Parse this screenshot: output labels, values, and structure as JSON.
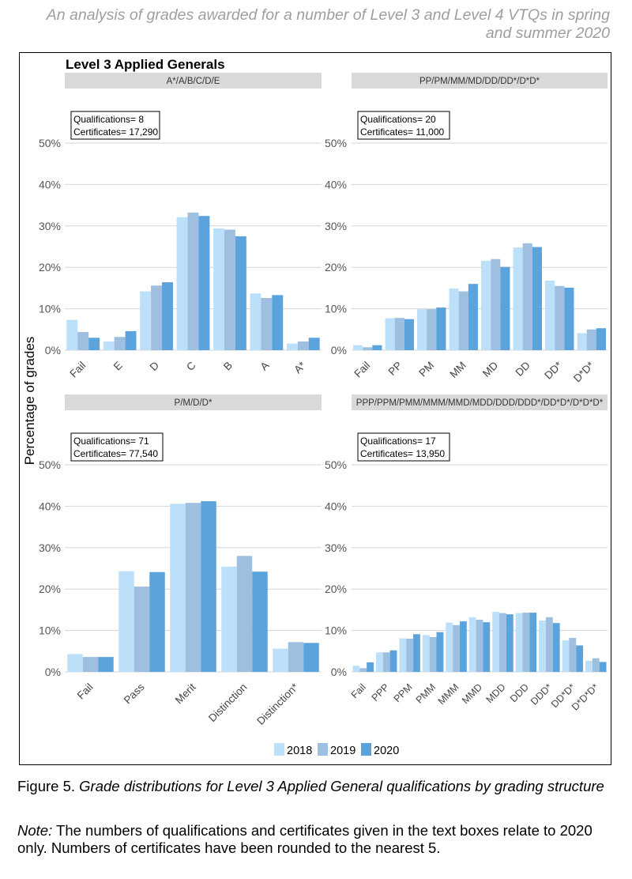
{
  "header": {
    "text": "An analysis of grades awarded for a number of Level 3 and Level 4 VTQs in spring and summer 2020"
  },
  "figure": {
    "group_title": "Level 3 Applied Generals",
    "ylabel": "Percentage of grades"
  },
  "caption": {
    "label": "Figure 5.",
    "text": "Grade distributions for Level 3 Applied General qualifications by grading structure"
  },
  "note": {
    "label": "Note:",
    "text": "The numbers of qualifications and certificates given in the text boxes relate to 2020 only. Numbers of certificates have been rounded to the nearest 5."
  },
  "colors": {
    "2018": "#bde0fa",
    "2019": "#9ebfe0",
    "2020": "#5ba3dc",
    "strip": "#d9d9d9",
    "grid": "#d4d4d4"
  },
  "chart_data": [
    {
      "type": "bar",
      "panel": "top-left",
      "strip_label": "A*/A/B/C/D/E",
      "info": [
        "Qualifications= 8",
        "Certificates= 17,290"
      ],
      "categories": [
        "Fail",
        "E",
        "D",
        "C",
        "B",
        "A",
        "A*"
      ],
      "series": [
        {
          "name": "2018",
          "values": [
            7.3,
            2.1,
            14.2,
            32.1,
            29.4,
            13.7,
            1.6
          ]
        },
        {
          "name": "2019",
          "values": [
            4.4,
            3.2,
            15.6,
            33.2,
            29.1,
            12.6,
            2.1
          ]
        },
        {
          "name": "2020",
          "values": [
            3.0,
            4.6,
            16.4,
            32.4,
            27.5,
            13.3,
            3.0
          ]
        }
      ],
      "y_ticks": [
        "0%",
        "10%",
        "20%",
        "30%",
        "40%",
        "50%"
      ],
      "ylim": [
        0,
        50
      ]
    },
    {
      "type": "bar",
      "panel": "top-right",
      "strip_label": "PP/PM/MM/MD/DD/DD*/D*D*",
      "info": [
        "Qualifications= 20",
        "Certificates= 11,000"
      ],
      "categories": [
        "Fail",
        "PP",
        "PM",
        "MM",
        "MD",
        "DD",
        "DD*",
        "D*D*"
      ],
      "series": [
        {
          "name": "2018",
          "values": [
            1.2,
            7.7,
            9.9,
            14.9,
            21.6,
            24.8,
            16.8,
            4.1
          ]
        },
        {
          "name": "2019",
          "values": [
            0.7,
            7.8,
            9.9,
            14.2,
            22.0,
            25.8,
            15.5,
            5.0
          ]
        },
        {
          "name": "2020",
          "values": [
            1.2,
            7.5,
            10.3,
            16.0,
            20.1,
            24.9,
            15.1,
            5.3
          ]
        }
      ],
      "y_ticks": [
        "0%",
        "10%",
        "20%",
        "30%",
        "40%",
        "50%"
      ],
      "ylim": [
        0,
        50
      ]
    },
    {
      "type": "bar",
      "panel": "bottom-left",
      "strip_label": "P/M/D/D*",
      "info": [
        "Qualifications= 71",
        "Certificates= 77,540"
      ],
      "categories": [
        "Fail",
        "Pass",
        "Merit",
        "Distinction",
        "Distinction*"
      ],
      "series": [
        {
          "name": "2018",
          "values": [
            4.3,
            24.3,
            40.6,
            25.4,
            5.6
          ]
        },
        {
          "name": "2019",
          "values": [
            3.6,
            20.6,
            40.8,
            28.0,
            7.2
          ]
        },
        {
          "name": "2020",
          "values": [
            3.6,
            24.1,
            41.2,
            24.2,
            7.0
          ]
        }
      ],
      "y_ticks": [
        "0%",
        "10%",
        "20%",
        "30%",
        "40%",
        "50%"
      ],
      "ylim": [
        0,
        50
      ]
    },
    {
      "type": "bar",
      "panel": "bottom-right",
      "strip_label": "PPP/PPM/PMM/MMM/MMD/MDD/DDD/DDD*/DD*D*/D*D*D*",
      "info": [
        "Qualifications= 17",
        "Certificates= 13,950"
      ],
      "categories": [
        "Fail",
        "PPP",
        "PPM",
        "PMM",
        "MMM",
        "MMD",
        "MDD",
        "DDD",
        "DDD*",
        "DD*D*",
        "D*D*D*"
      ],
      "series": [
        {
          "name": "2018",
          "values": [
            1.5,
            4.7,
            8.1,
            8.9,
            11.9,
            13.2,
            14.5,
            14.2,
            12.4,
            7.6,
            2.7
          ]
        },
        {
          "name": "2019",
          "values": [
            0.9,
            4.7,
            8.0,
            8.4,
            11.3,
            12.6,
            14.2,
            14.3,
            13.2,
            8.2,
            3.3
          ]
        },
        {
          "name": "2020",
          "values": [
            2.3,
            5.2,
            9.1,
            9.6,
            12.2,
            12.0,
            13.9,
            14.3,
            11.8,
            6.4,
            2.4
          ]
        }
      ],
      "y_ticks": [
        "0%",
        "10%",
        "20%",
        "30%",
        "40%",
        "50%"
      ],
      "ylim": [
        0,
        50
      ]
    }
  ],
  "legend": {
    "items": [
      "2018",
      "2019",
      "2020"
    ],
    "position": "bottom"
  }
}
